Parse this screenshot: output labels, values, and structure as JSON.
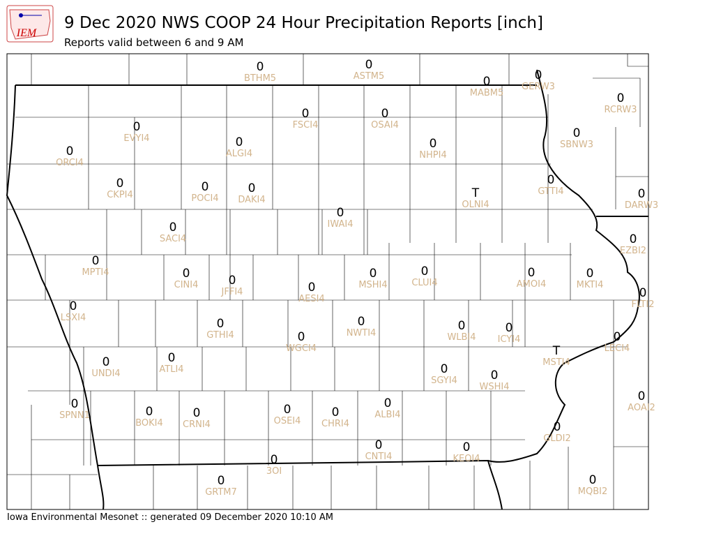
{
  "header": {
    "logo_text": "IEM",
    "title": "9 Dec 2020 NWS COOP 24 Hour Precipitation Reports [inch]",
    "subtitle": "Reports valid between 6 and 9 AM"
  },
  "footer": "Iowa Environmental Mesonet :: generated 09 December 2020 10:10 AM",
  "stations": [
    {
      "id": "BTHM5",
      "value": 0
    },
    {
      "id": "ASTM5",
      "value": 0
    },
    {
      "id": "MABM5",
      "value": 0
    },
    {
      "id": "GERW3",
      "value": 0
    },
    {
      "id": "RCRW3",
      "value": 0
    },
    {
      "id": "EVYI4",
      "value": 0
    },
    {
      "id": "FSCI4",
      "value": 0
    },
    {
      "id": "OSAI4",
      "value": 0
    },
    {
      "id": "ORCI4",
      "value": 0
    },
    {
      "id": "ALGI4",
      "value": 0
    },
    {
      "id": "NHPI4",
      "value": 0
    },
    {
      "id": "SBNW3",
      "value": 0
    },
    {
      "id": "CKPI4",
      "value": 0
    },
    {
      "id": "POCI4",
      "value": 0
    },
    {
      "id": "DAKI4",
      "value": 0
    },
    {
      "id": "GTTI4",
      "value": 0
    },
    {
      "id": "OLNI4",
      "value": "T"
    },
    {
      "id": "DARW3",
      "value": 0
    },
    {
      "id": "IWAI4",
      "value": 0
    },
    {
      "id": "SACI4",
      "value": 0
    },
    {
      "id": "EZBI2",
      "value": 0
    },
    {
      "id": "MPTI4",
      "value": 0
    },
    {
      "id": "CLUI4",
      "value": 0
    },
    {
      "id": "AMOI4",
      "value": 0
    },
    {
      "id": "MKTI4",
      "value": 0
    },
    {
      "id": "CINI4",
      "value": 0
    },
    {
      "id": "JFFI4",
      "value": 0
    },
    {
      "id": "MSHI4",
      "value": 0
    },
    {
      "id": "AESI4",
      "value": 0
    },
    {
      "id": "FLTI2",
      "value": 0
    },
    {
      "id": "LSXI4",
      "value": 0
    },
    {
      "id": "GTHI4",
      "value": 0
    },
    {
      "id": "NWTI4",
      "value": 0
    },
    {
      "id": "WLBI4",
      "value": 0
    },
    {
      "id": "ICYI4",
      "value": 0
    },
    {
      "id": "WGCI4",
      "value": 0
    },
    {
      "id": "LECI4",
      "value": 0
    },
    {
      "id": "MSTI4",
      "value": "T"
    },
    {
      "id": "ATLI4",
      "value": 0
    },
    {
      "id": "UNDI4",
      "value": 0
    },
    {
      "id": "SGYI4",
      "value": 0
    },
    {
      "id": "WSHI4",
      "value": 0
    },
    {
      "id": "AOAI2",
      "value": 0
    },
    {
      "id": "SPNN1",
      "value": 0
    },
    {
      "id": "BOKI4",
      "value": 0
    },
    {
      "id": "CRNI4",
      "value": 0
    },
    {
      "id": "OSEI4",
      "value": 0
    },
    {
      "id": "CHRI4",
      "value": 0
    },
    {
      "id": "ALBI4",
      "value": 0
    },
    {
      "id": "GLDI2",
      "value": 0
    },
    {
      "id": "CNTI4",
      "value": 0
    },
    {
      "id": "KEOI4",
      "value": 0
    },
    {
      "id": "3OI",
      "value": 0
    },
    {
      "id": "GRTM7",
      "value": 0
    },
    {
      "id": "MQBI2",
      "value": 0
    }
  ]
}
